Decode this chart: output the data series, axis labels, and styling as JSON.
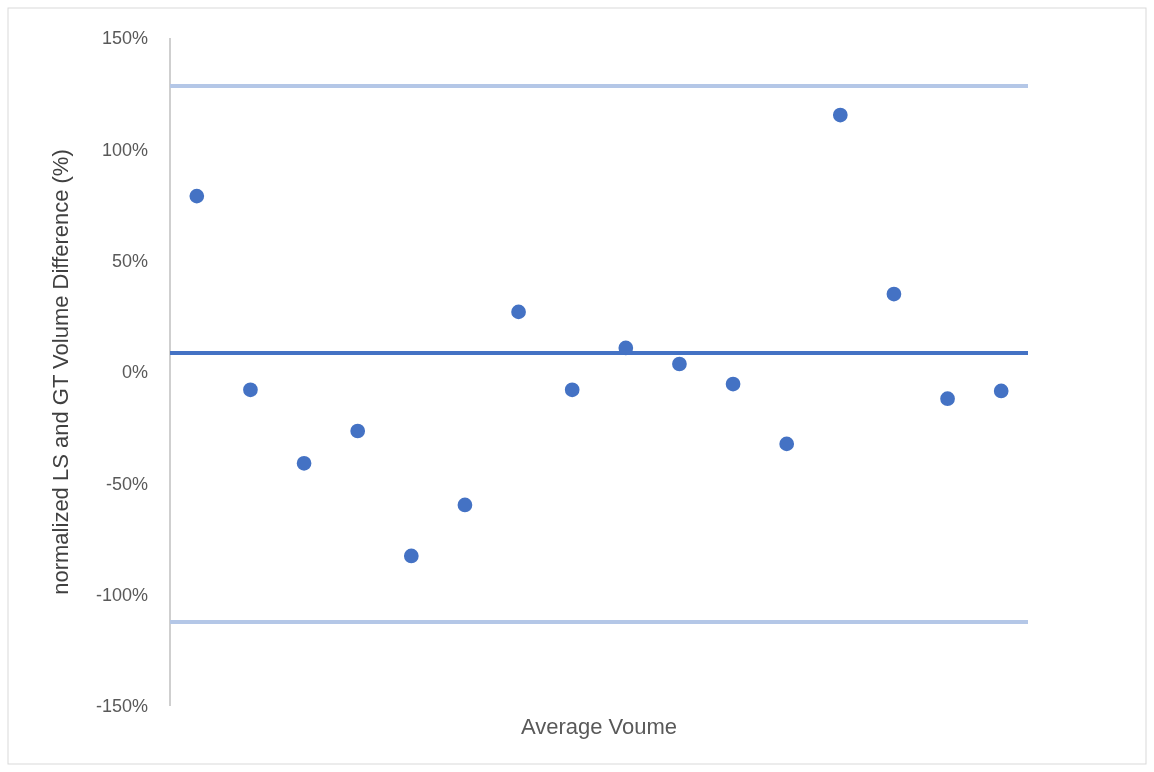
{
  "chart_data": {
    "type": "scatter",
    "xlabel": "Average Voume",
    "ylabel": "normalized LS and GT Volume Difference (%)",
    "categories": [
      null,
      null,
      null,
      null,
      null,
      null,
      null,
      null,
      null,
      null,
      null,
      null,
      null,
      null,
      null,
      null
    ],
    "series": [
      {
        "color": "#4472c4",
        "values": [
          79,
          -8,
          -41,
          -26.5,
          -82.6,
          -59.7,
          27,
          -8,
          10.8,
          3.6,
          -5.4,
          -32.3,
          115.4,
          35,
          -12,
          -8.5
        ]
      }
    ],
    "ylim": [
      -150,
      150
    ],
    "yticks": [
      {
        "value": -150,
        "label": "-150%"
      },
      {
        "value": -100,
        "label": "-100%"
      },
      {
        "value": -50,
        "label": "-50%"
      },
      {
        "value": 0,
        "label": "0%"
      },
      {
        "value": 50,
        "label": "50%"
      },
      {
        "value": 100,
        "label": "100%"
      },
      {
        "value": 150,
        "label": "150%"
      }
    ],
    "tick_labels": "y",
    "marker": "circle",
    "grid": false,
    "ref_lines": [
      {
        "axis": "y",
        "value": 128.4,
        "color": "#b4c7e7"
      },
      {
        "axis": "y",
        "value": 8.5,
        "color": "#4472c4"
      },
      {
        "axis": "y",
        "value": -112.3,
        "color": "#b4c7e7"
      }
    ]
  }
}
